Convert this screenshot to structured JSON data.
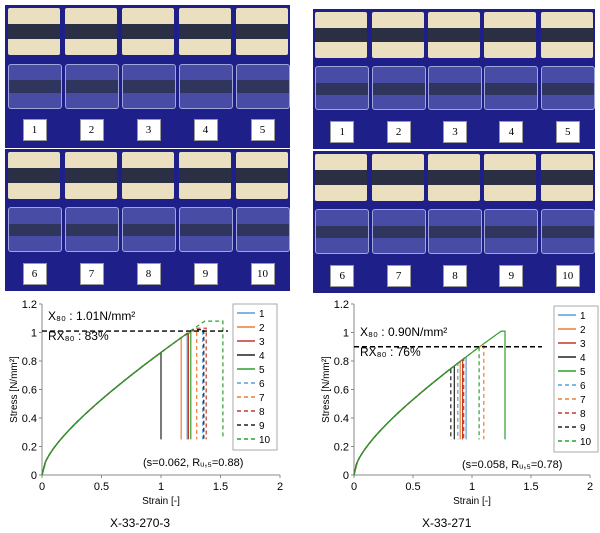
{
  "photo_colors": {
    "board": "#1f1f8a",
    "wood": "#eadfbf",
    "tape": "#2b2f44"
  },
  "photos": [
    {
      "name": "left-top",
      "labels": [
        "1",
        "2",
        "3",
        "4",
        "5"
      ]
    },
    {
      "name": "left-bottom",
      "labels": [
        "6",
        "7",
        "8",
        "9",
        "10"
      ]
    },
    {
      "name": "right-top",
      "labels": [
        "1",
        "2",
        "3",
        "4",
        "5"
      ]
    },
    {
      "name": "right-bottom",
      "labels": [
        "6",
        "7",
        "8",
        "9",
        "10"
      ]
    }
  ],
  "series_colors": [
    "#5b9bd5",
    "#ed7d31",
    "#c0392b",
    "#222222",
    "#2ca02c",
    "#5b9bd5",
    "#ed7d31",
    "#c0392b",
    "#222222",
    "#2ca02c"
  ],
  "series_dashed": [
    false,
    false,
    false,
    false,
    false,
    true,
    true,
    true,
    true,
    true
  ],
  "chart_data": [
    {
      "type": "line",
      "caption": "X-33-270-3",
      "xlabel": "Strain [-]",
      "ylabel": "Stress [N/mm²]",
      "xlim": [
        0,
        2
      ],
      "ylim": [
        0,
        1.2
      ],
      "xticks": [
        "0",
        "0.5",
        "1",
        "1.5",
        "2"
      ],
      "yticks": [
        "0",
        "0.2",
        "0.4",
        "0.6",
        "0.8",
        "1",
        "1.2"
      ],
      "annotations": {
        "x80": "X₈₀ : 1.01N/mm²",
        "rx80": "RX₈₀ : 83%",
        "stats": "(s=0.062, Rᵤ,₅=0.88)"
      },
      "reference_line": 1.01,
      "legend": [
        "1",
        "2",
        "3",
        "4",
        "5",
        "6",
        "7",
        "8",
        "9",
        "10"
      ],
      "series": [
        {
          "name": "1",
          "x_fail": 1.22,
          "y_fail": 0.99
        },
        {
          "name": "2",
          "x_fail": 1.17,
          "y_fail": 0.97
        },
        {
          "name": "3",
          "x_fail": 1.23,
          "y_fail": 0.99
        },
        {
          "name": "4",
          "x_fail": 1.0,
          "y_fail": 0.93
        },
        {
          "name": "5",
          "x_fail": 1.25,
          "y_fail": 1.0
        },
        {
          "name": "6",
          "x_fail": 1.35,
          "y_fail": 1.02
        },
        {
          "name": "7",
          "x_fail": 1.3,
          "y_fail": 1.01
        },
        {
          "name": "8",
          "x_fail": 1.38,
          "y_fail": 1.03
        },
        {
          "name": "9",
          "x_fail": 1.36,
          "y_fail": 1.02
        },
        {
          "name": "10",
          "x_fail": 1.52,
          "y_fail": 1.08
        }
      ]
    },
    {
      "type": "line",
      "caption": "X-33-271",
      "xlabel": "Strain [-]",
      "ylabel": "Stress [N/mm²]",
      "xlim": [
        0,
        2
      ],
      "ylim": [
        0,
        1.2
      ],
      "xticks": [
        "0",
        "0.5",
        "1",
        "1.5",
        "2"
      ],
      "yticks": [
        "0",
        "0.2",
        "0.4",
        "0.6",
        "0.8",
        "1",
        "1.2"
      ],
      "annotations": {
        "x80": "X₈₀ : 0.90N/mm²",
        "rx80": "RX₈₀ : 76%",
        "stats": "(s=0.058, Rᵤ,₅=0.78)"
      },
      "reference_line": 0.9,
      "legend": [
        "1",
        "2",
        "3",
        "4",
        "5",
        "6",
        "7",
        "8",
        "9",
        "10"
      ],
      "series": [
        {
          "name": "1",
          "x_fail": 0.95,
          "y_fail": 0.86
        },
        {
          "name": "2",
          "x_fail": 0.9,
          "y_fail": 0.84
        },
        {
          "name": "3",
          "x_fail": 0.92,
          "y_fail": 0.85
        },
        {
          "name": "4",
          "x_fail": 0.85,
          "y_fail": 0.82
        },
        {
          "name": "5",
          "x_fail": 1.28,
          "y_fail": 1.01
        },
        {
          "name": "6",
          "x_fail": 0.88,
          "y_fail": 0.84
        },
        {
          "name": "7",
          "x_fail": 1.1,
          "y_fail": 0.93
        },
        {
          "name": "8",
          "x_fail": 0.93,
          "y_fail": 0.86
        },
        {
          "name": "9",
          "x_fail": 0.82,
          "y_fail": 0.81
        },
        {
          "name": "10",
          "x_fail": 1.06,
          "y_fail": 0.92
        }
      ]
    }
  ]
}
